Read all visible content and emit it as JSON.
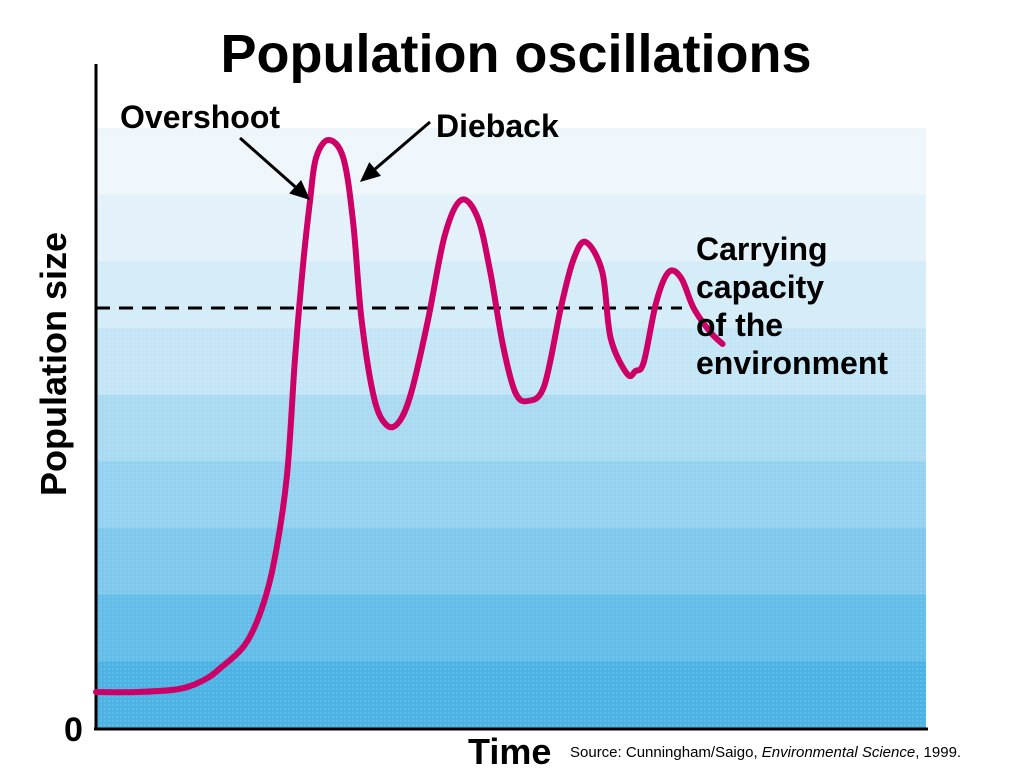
{
  "chart_data": {
    "type": "line",
    "title": "Population oscillations",
    "xlabel": "Time",
    "ylabel": "Population size",
    "y_tick_labels": [
      "0"
    ],
    "xlim": [
      0,
      100
    ],
    "ylim": [
      0,
      100
    ],
    "grid": false,
    "legend": "none",
    "carrying_capacity": {
      "value": 70,
      "style": "dashed",
      "label_lines": [
        "Carrying",
        "capacity",
        "of the",
        "environment"
      ]
    },
    "annotations": [
      {
        "text": "Overshoot",
        "x": 25.8,
        "y": 88
      },
      {
        "text": "Dieback",
        "x": 31.8,
        "y": 91
      }
    ],
    "series": [
      {
        "color": "#cc0066",
        "x": [
          0,
          5,
          10,
          13,
          15,
          18,
          20,
          21.5,
          23,
          24,
          25,
          25.8,
          26.5,
          28,
          29.8,
          31,
          32,
          33.5,
          35,
          36.5,
          38,
          40,
          42,
          44,
          46,
          47.5,
          49,
          50.5,
          52,
          54,
          56,
          57.5,
          59,
          61,
          62,
          64,
          65,
          66,
          67.5,
          69,
          70.5,
          72,
          74,
          75.5
        ],
        "y": [
          6,
          6,
          6.5,
          8,
          10,
          14,
          20,
          28,
          42,
          62,
          78,
          88,
          95,
          98,
          95,
          84,
          68,
          55,
          50.5,
          51,
          56,
          68,
          82,
          88,
          85,
          76,
          64,
          56,
          54.5,
          57,
          70,
          78,
          81,
          76,
          65,
          59,
          59.5,
          61,
          71,
          76,
          75,
          70,
          66,
          64
        ]
      }
    ],
    "colors": {
      "curve": "#cc0066",
      "background_bands": [
        "#eef6fb",
        "#e3f2fa",
        "#d4ecf8",
        "#c4e5f5",
        "#aadaf2",
        "#95d1f0",
        "#7ec8ee",
        "#63bde9",
        "#4db3e4"
      ]
    }
  },
  "source": {
    "prefix": "Source: Cunningham/Saigo, ",
    "work": "Environmental Science",
    "suffix": ", 1999."
  }
}
